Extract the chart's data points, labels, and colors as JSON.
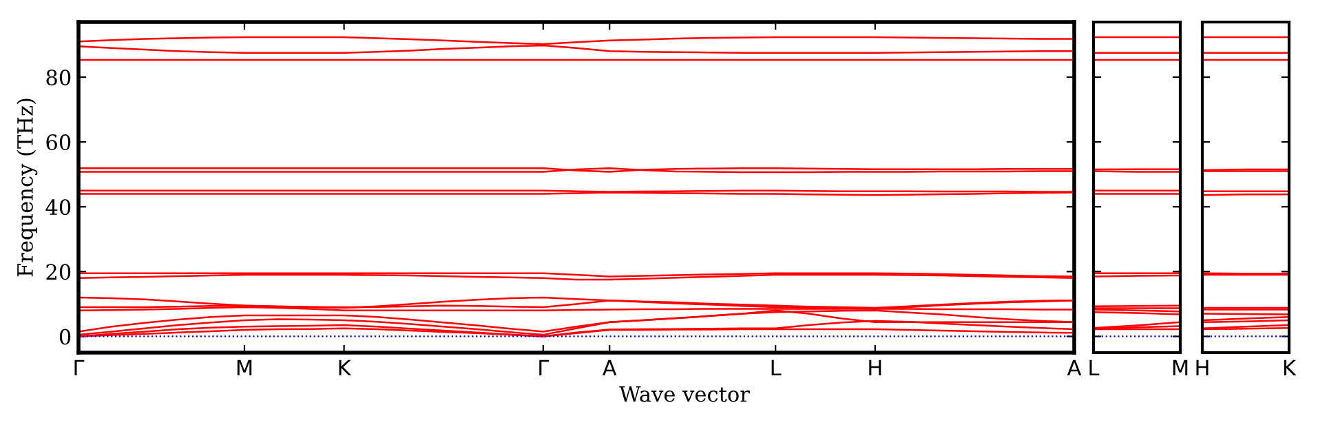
{
  "chart_data": [
    {
      "type": "line",
      "xlabel": "Wave vector",
      "ylabel": "Frequency (THz)",
      "categories": [
        "Γ",
        null,
        null,
        null,
        null,
        "M",
        null,
        null,
        "K",
        null,
        null,
        null,
        null,
        null,
        "Γ",
        null,
        "A",
        null,
        null,
        null,
        null,
        "L",
        null,
        null,
        "H",
        null,
        null,
        null,
        null,
        null,
        "A"
      ],
      "ylim": [
        -5,
        97
      ],
      "yticks": [
        0,
        20,
        40,
        60,
        80
      ],
      "grid": false,
      "line_style": "solid",
      "marker": "none",
      "ref_lines": [
        {
          "axis": "y",
          "value": 0,
          "label": null,
          "color": "#0000ff",
          "line_style": "dotted"
        }
      ],
      "series": [
        {
          "color": "#ff0000",
          "values": [
            0,
            0.4,
            0.8,
            1.2,
            1.6,
            2,
            2.2,
            2.3,
            2.5,
            2.2,
            1.8,
            1.4,
            1,
            0.5,
            0,
            1,
            2,
            2,
            2.1,
            2.1,
            2.2,
            2.2,
            2.2,
            2.2,
            2.2,
            2,
            1.8,
            1.6,
            1.4,
            1.2,
            1.1
          ]
        },
        {
          "color": "#ff0000",
          "values": [
            0,
            0.8,
            1.5,
            2.2,
            2.7,
            3,
            3.2,
            3.3,
            3.5,
            3,
            2.4,
            1.8,
            1.2,
            0.6,
            0,
            1.2,
            2.1,
            2.2,
            2.3,
            2.4,
            2.5,
            2.5,
            3.5,
            4.3,
            4.8,
            4.5,
            4,
            3.5,
            3,
            2.6,
            2.2
          ]
        },
        {
          "color": "#ff0000",
          "values": [
            0.5,
            1.5,
            2.5,
            3.5,
            4.3,
            5,
            5.3,
            5.2,
            5,
            4.5,
            3.8,
            3,
            2.2,
            1.3,
            0.5,
            2.5,
            4.4,
            5,
            5.6,
            6.3,
            7,
            8,
            7,
            5.5,
            4.4,
            4.4,
            4.4,
            4.4,
            4.4,
            4.4,
            4.4
          ]
        },
        {
          "color": "#ff0000",
          "values": [
            1.5,
            3,
            4.2,
            5.2,
            6,
            6.5,
            6.5,
            6.5,
            6.5,
            6,
            5.2,
            4.3,
            3.4,
            2.4,
            1.5,
            3,
            4.4,
            5,
            5.6,
            6.3,
            7,
            7.5,
            7.7,
            7.9,
            8,
            7.4,
            6.8,
            6,
            5.3,
            4.8,
            4.4
          ]
        },
        {
          "color": "#ff0000",
          "values": [
            8,
            8.1,
            8.3,
            8.5,
            8.8,
            9,
            8.8,
            8.5,
            8,
            8,
            8,
            8,
            8,
            8,
            8,
            8.2,
            8.3,
            8.4,
            8.4,
            8.5,
            8.5,
            8.5,
            8.5,
            8.5,
            8.5,
            8.5,
            8.4,
            8.4,
            8.4,
            8.3,
            8.3
          ]
        },
        {
          "color": "#ff0000",
          "values": [
            9,
            9,
            9,
            9.2,
            9.4,
            9.5,
            9.3,
            9.1,
            9,
            9.1,
            9.3,
            9.5,
            9.4,
            9.2,
            9,
            10,
            11.1,
            10.6,
            10.2,
            9.8,
            9.4,
            9,
            8.9,
            8.7,
            8.5,
            9,
            9.6,
            10.1,
            10.5,
            10.8,
            11.1
          ]
        },
        {
          "color": "#ff0000",
          "values": [
            12,
            11.8,
            11.4,
            10.8,
            10.1,
            9.5,
            9.2,
            9,
            8.8,
            9.3,
            10,
            10.7,
            11.3,
            11.8,
            12,
            11.5,
            11.1,
            10.8,
            10.5,
            10.1,
            9.8,
            9.5,
            9.2,
            9,
            8.8,
            9.3,
            9.8,
            10.3,
            10.7,
            11,
            11.1
          ]
        },
        {
          "color": "#ff0000",
          "values": [
            18,
            18.2,
            18.4,
            18.6,
            18.8,
            19,
            19,
            19,
            19,
            18.9,
            18.8,
            18.6,
            18.4,
            18.2,
            18,
            17.5,
            17.5,
            17.8,
            18.1,
            18.4,
            18.7,
            19,
            19,
            19,
            19,
            18.9,
            18.8,
            18.6,
            18.4,
            18.2,
            18
          ]
        },
        {
          "color": "#ff0000",
          "values": [
            19.5,
            19.5,
            19.5,
            19.5,
            19.5,
            19.5,
            19.5,
            19.5,
            19.5,
            19.5,
            19.5,
            19.5,
            19.5,
            19.5,
            19.5,
            19,
            18.5,
            18.7,
            18.9,
            19.1,
            19.3,
            19.5,
            19.5,
            19.5,
            19.5,
            19.4,
            19.2,
            19,
            18.8,
            18.6,
            18.5
          ]
        },
        {
          "color": "#ff0000",
          "values": [
            44,
            44,
            44,
            44,
            44,
            44,
            44,
            44,
            44,
            44,
            44,
            44,
            44,
            44,
            44,
            44.2,
            44.4,
            44.3,
            44.2,
            44.1,
            44,
            44,
            43.8,
            43.7,
            43.6,
            43.7,
            43.9,
            44,
            44.2,
            44.3,
            44.4
          ]
        },
        {
          "color": "#ff0000",
          "values": [
            45,
            45,
            45,
            45,
            45,
            45,
            45,
            45,
            45,
            45,
            45,
            45,
            45,
            45,
            45,
            44.8,
            44.6,
            44.7,
            44.8,
            44.9,
            45,
            45,
            44.9,
            44.8,
            44.8,
            44.8,
            44.7,
            44.7,
            44.7,
            44.6,
            44.6
          ]
        },
        {
          "color": "#ff0000",
          "values": [
            50.8,
            50.8,
            50.8,
            50.8,
            50.8,
            50.8,
            50.8,
            50.8,
            50.8,
            50.8,
            50.8,
            50.8,
            50.8,
            50.8,
            50.8,
            51.5,
            51.9,
            51.3,
            50.9,
            50.8,
            50.7,
            50.7,
            50.7,
            50.8,
            50.8,
            50.8,
            50.9,
            50.9,
            50.9,
            51,
            51
          ]
        },
        {
          "color": "#ff0000",
          "values": [
            51.9,
            51.9,
            51.9,
            51.9,
            51.9,
            51.9,
            51.9,
            51.9,
            51.9,
            51.9,
            51.9,
            51.9,
            51.9,
            51.9,
            51.9,
            51.2,
            50.8,
            51.4,
            51.7,
            51.8,
            51.9,
            51.9,
            51.8,
            51.7,
            51.6,
            51.6,
            51.6,
            51.6,
            51.7,
            51.7,
            51.7
          ]
        },
        {
          "color": "#ff0000",
          "values": [
            85.3,
            85.3,
            85.3,
            85.3,
            85.3,
            85.3,
            85.3,
            85.3,
            85.3,
            85.3,
            85.3,
            85.3,
            85.3,
            85.3,
            85.3,
            85.3,
            85.3,
            85.3,
            85.3,
            85.3,
            85.3,
            85.3,
            85.3,
            85.3,
            85.3,
            85.3,
            85.3,
            85.3,
            85.3,
            85.3,
            85.3
          ]
        },
        {
          "color": "#ff0000",
          "values": [
            89.5,
            89,
            88.5,
            88,
            87.7,
            87.5,
            87.5,
            87.5,
            87.5,
            87.8,
            88.2,
            88.7,
            89.1,
            89.5,
            89.8,
            89,
            88,
            87.8,
            87.7,
            87.6,
            87.5,
            87.5,
            87.5,
            87.5,
            87.5,
            87.6,
            87.7,
            87.8,
            87.9,
            88,
            88
          ]
        },
        {
          "color": "#ff0000",
          "values": [
            91,
            91.4,
            91.8,
            92,
            92.2,
            92.3,
            92.3,
            92.3,
            92.3,
            92,
            91.7,
            91.3,
            90.9,
            90.5,
            90.2,
            90.8,
            91.3,
            91.6,
            91.9,
            92.1,
            92.2,
            92.3,
            92.3,
            92.3,
            92.3,
            92.2,
            92.1,
            92,
            91.9,
            91.8,
            91.8
          ]
        }
      ]
    },
    {
      "type": "line",
      "categories": [
        "L",
        null,
        "M"
      ],
      "ylim": [
        -5,
        97
      ],
      "yticks": [
        0,
        20,
        40,
        60,
        80
      ],
      "tick_labels": "x",
      "grid": false,
      "line_style": "solid",
      "marker": "none",
      "ref_lines": [
        {
          "axis": "y",
          "value": 0,
          "label": null,
          "color": "#0000ff",
          "line_style": "dotted"
        }
      ],
      "series": [
        {
          "color": "#ff0000",
          "values": [
            2.2,
            2.2,
            2.2
          ]
        },
        {
          "color": "#ff0000",
          "values": [
            2.4,
            2.8,
            3.2
          ]
        },
        {
          "color": "#ff0000",
          "values": [
            2.6,
            3.4,
            4.4
          ]
        },
        {
          "color": "#ff0000",
          "values": [
            7.5,
            7.2,
            6.8
          ]
        },
        {
          "color": "#ff0000",
          "values": [
            8.3,
            8,
            7.7
          ]
        },
        {
          "color": "#ff0000",
          "values": [
            8.7,
            8.7,
            8.7
          ]
        },
        {
          "color": "#ff0000",
          "values": [
            9.3,
            9.4,
            9.5
          ]
        },
        {
          "color": "#ff0000",
          "values": [
            18.5,
            18.7,
            18.8
          ]
        },
        {
          "color": "#ff0000",
          "values": [
            19.5,
            19.5,
            19.5
          ]
        },
        {
          "color": "#ff0000",
          "values": [
            44,
            44,
            44
          ]
        },
        {
          "color": "#ff0000",
          "values": [
            45,
            45,
            45
          ]
        },
        {
          "color": "#ff0000",
          "values": [
            51,
            50.8,
            50.8
          ]
        },
        {
          "color": "#ff0000",
          "values": [
            51.5,
            51.6,
            51.6
          ]
        },
        {
          "color": "#ff0000",
          "values": [
            85.3,
            85.3,
            85.3
          ]
        },
        {
          "color": "#ff0000",
          "values": [
            87.5,
            87.5,
            87.5
          ]
        },
        {
          "color": "#ff0000",
          "values": [
            92.3,
            92.3,
            92.3
          ]
        }
      ]
    },
    {
      "type": "line",
      "categories": [
        "H",
        null,
        "K"
      ],
      "ylim": [
        -5,
        97
      ],
      "yticks": [
        0,
        20,
        40,
        60,
        80
      ],
      "tick_labels": "x",
      "grid": false,
      "line_style": "solid",
      "marker": "none",
      "ref_lines": [
        {
          "axis": "y",
          "value": 0,
          "label": null,
          "color": "#0000ff",
          "line_style": "dotted"
        }
      ],
      "series": [
        {
          "color": "#ff0000",
          "values": [
            2.2,
            2.4,
            2.6
          ]
        },
        {
          "color": "#ff0000",
          "values": [
            2.5,
            3,
            3.5
          ]
        },
        {
          "color": "#ff0000",
          "values": [
            4.4,
            4.6,
            5
          ]
        },
        {
          "color": "#ff0000",
          "values": [
            5,
            5.5,
            6
          ]
        },
        {
          "color": "#ff0000",
          "values": [
            7,
            6.9,
            6.8
          ]
        },
        {
          "color": "#ff0000",
          "values": [
            8.3,
            8.3,
            8.3
          ]
        },
        {
          "color": "#ff0000",
          "values": [
            8.8,
            8.8,
            8.8
          ]
        },
        {
          "color": "#ff0000",
          "values": [
            19,
            19,
            19
          ]
        },
        {
          "color": "#ff0000",
          "values": [
            19.5,
            19.4,
            19.4
          ]
        },
        {
          "color": "#ff0000",
          "values": [
            43.6,
            43.8,
            43.8
          ]
        },
        {
          "color": "#ff0000",
          "values": [
            44.8,
            44.8,
            44.8
          ]
        },
        {
          "color": "#ff0000",
          "values": [
            51,
            51,
            51
          ]
        },
        {
          "color": "#ff0000",
          "values": [
            51.3,
            51.5,
            51.5
          ]
        },
        {
          "color": "#ff0000",
          "values": [
            85.3,
            85.3,
            85.3
          ]
        },
        {
          "color": "#ff0000",
          "values": [
            87.5,
            87.5,
            87.5
          ]
        },
        {
          "color": "#ff0000",
          "values": [
            92.3,
            92.3,
            92.3
          ]
        }
      ]
    }
  ]
}
